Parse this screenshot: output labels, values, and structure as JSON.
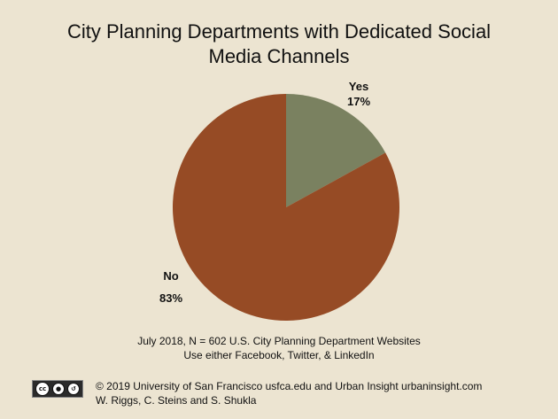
{
  "title_lines": [
    "City Planning Departments with Dedicated Social",
    "Media Channels"
  ],
  "chart_data": {
    "type": "pie",
    "title": "City Planning Departments with Dedicated Social Media Channels",
    "slices": [
      {
        "label": "Yes",
        "value": 17,
        "value_label": "17%",
        "color": "#7a8160"
      },
      {
        "label": "No",
        "value": 83,
        "value_label": "83%",
        "color": "#964b25"
      }
    ]
  },
  "note_lines": [
    "July 2018, N = 602 U.S. City Planning Department Websites",
    "Use either Facebook, Twitter, & LinkedIn"
  ],
  "footer_lines": [
    "© 2019 University of San Francisco usfca.edu and Urban Insight urbaninsight.com",
    "W. Riggs, C. Steins and S. Shukla"
  ],
  "license_badge": {
    "icon": "creative-commons-by-sa-icon"
  }
}
